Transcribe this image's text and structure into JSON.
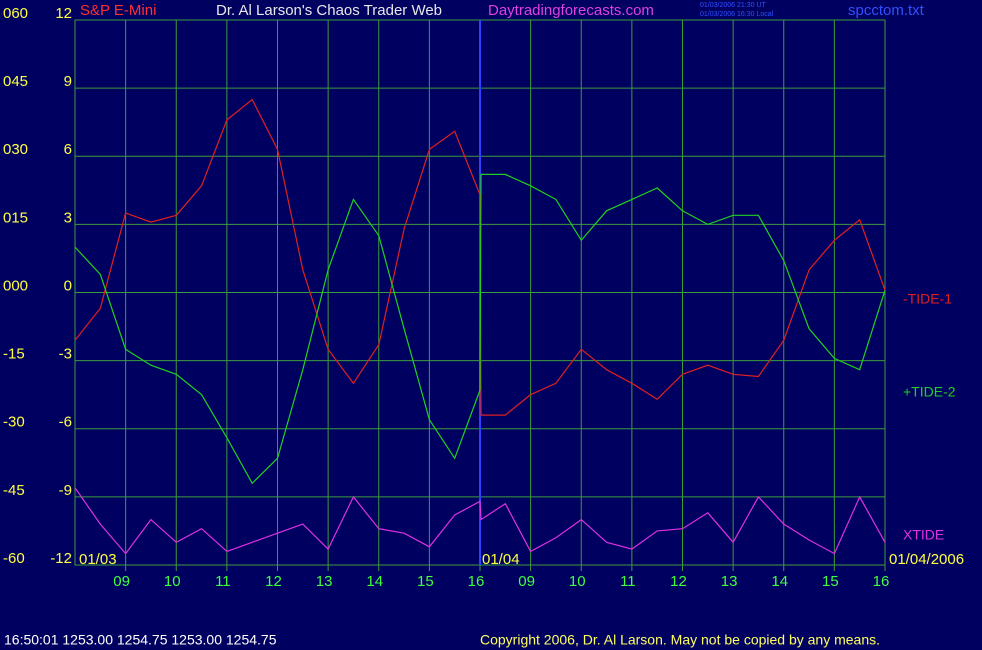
{
  "header": {
    "instrument": "S&P E-Mini",
    "title": "Dr. Al Larson's Chaos Trader Web",
    "website": "Daytradingforecasts.com",
    "timestamps": [
      "01/03/2006 21:30 UT",
      "01/03/2006 16:30 Local"
    ],
    "filename": "spcctom.txt"
  },
  "footer": {
    "status_line": "16:50:01  1253.00 1254.75 1253.00 1254.75",
    "copyright": "Copyright 2006, Dr. Al Larson. May not be copied by any means."
  },
  "chart_data": {
    "type": "line",
    "grid": true,
    "legend": "right",
    "background": "#000060",
    "grid_color": "#3c9c3c",
    "day_labels": [
      "01/03",
      "01/04",
      "01/04/2006"
    ],
    "x": [
      0,
      0.5,
      1,
      1.5,
      2,
      2.5,
      3,
      3.5,
      4,
      4.5,
      5,
      5.5,
      6,
      6.5,
      7,
      7.5,
      8,
      8.02,
      8.5,
      9,
      9.5,
      10,
      10.5,
      11,
      11.5,
      12,
      12.5,
      13,
      13.5,
      14,
      14.5,
      15,
      15.5,
      16
    ],
    "xlim": [
      0,
      16
    ],
    "xticks": [
      {
        "value": 1,
        "label": "09"
      },
      {
        "value": 2,
        "label": "10"
      },
      {
        "value": 3,
        "label": "11"
      },
      {
        "value": 4,
        "label": "12"
      },
      {
        "value": 5,
        "label": "13"
      },
      {
        "value": 6,
        "label": "14"
      },
      {
        "value": 7,
        "label": "15"
      },
      {
        "value": 8,
        "label": "16"
      },
      {
        "value": 9,
        "label": "09"
      },
      {
        "value": 10,
        "label": "10"
      },
      {
        "value": 11,
        "label": "11"
      },
      {
        "value": 12,
        "label": "12"
      },
      {
        "value": 13,
        "label": "13"
      },
      {
        "value": 14,
        "label": "14"
      },
      {
        "value": 15,
        "label": "15"
      },
      {
        "value": 16,
        "label": "16"
      }
    ],
    "ylim": [
      -12,
      12
    ],
    "yticks": [
      12,
      9,
      6,
      3,
      0,
      -3,
      -6,
      -9,
      -12
    ],
    "y2lim": [
      -60,
      60
    ],
    "y2ticks": [
      {
        "value": 60,
        "label": "060"
      },
      {
        "value": 45,
        "label": "045"
      },
      {
        "value": 30,
        "label": "030"
      },
      {
        "value": 15,
        "label": "015"
      },
      {
        "value": 0,
        "label": "000"
      },
      {
        "value": -15,
        "label": "-15"
      },
      {
        "value": -30,
        "label": "-30"
      },
      {
        "value": -45,
        "label": "-45"
      },
      {
        "value": -60,
        "label": "-60"
      }
    ],
    "series": [
      {
        "name": "-TIDE-1",
        "color": "#e02020",
        "values": [
          -2.1,
          -0.7,
          3.5,
          3.1,
          3.4,
          4.7,
          7.6,
          8.5,
          6.3,
          1.0,
          -2.5,
          -4.0,
          -2.3,
          2.8,
          6.3,
          7.1,
          4.3,
          -5.4,
          -5.4,
          -4.5,
          -4.0,
          -2.5,
          -3.4,
          -4.0,
          -4.7,
          -3.6,
          -3.2,
          -3.6,
          -3.7,
          -2.1,
          1.0,
          2.3,
          3.2,
          0.1
        ]
      },
      {
        "name": "+TIDE-2",
        "color": "#20d020",
        "values": [
          2.0,
          0.8,
          -2.5,
          -3.2,
          -3.6,
          -4.5,
          -6.4,
          -8.4,
          -7.3,
          -3.4,
          1.0,
          4.1,
          2.5,
          -1.6,
          -5.6,
          -7.3,
          -4.3,
          5.2,
          5.2,
          4.7,
          4.1,
          2.3,
          3.6,
          4.1,
          4.6,
          3.6,
          3.0,
          3.4,
          3.4,
          1.4,
          -1.6,
          -2.9,
          -3.4,
          0.1
        ]
      },
      {
        "name": "XTIDE",
        "color": "#e030e0",
        "values": [
          -8.6,
          -10.2,
          -11.5,
          -10.0,
          -11.0,
          -10.4,
          -11.4,
          -11.0,
          -10.6,
          -10.2,
          -11.3,
          -9.0,
          -10.4,
          -10.6,
          -11.2,
          -9.8,
          -9.2,
          -10.0,
          -9.3,
          -11.4,
          -10.8,
          -10.0,
          -11.0,
          -11.3,
          -10.5,
          -10.4,
          -9.7,
          -11.0,
          -9.0,
          -10.2,
          -10.9,
          -11.5,
          -9.0,
          -11.0
        ]
      }
    ]
  }
}
